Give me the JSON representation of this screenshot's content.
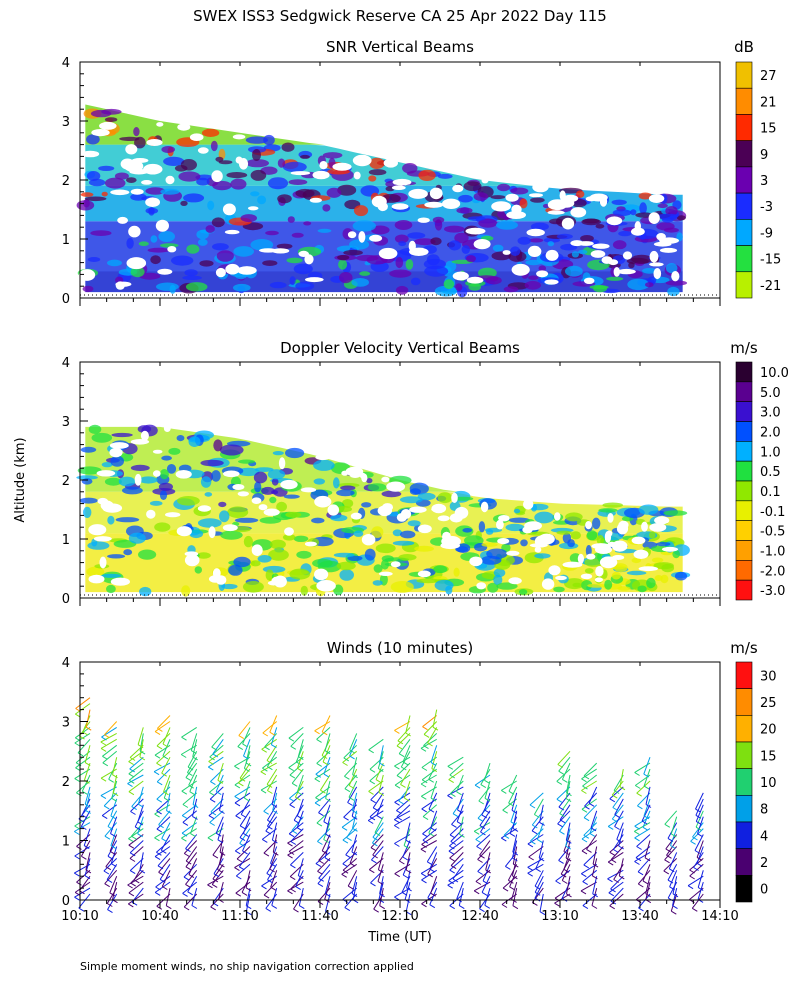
{
  "figure": {
    "title": "SWEX ISS3 Sedgwick Reserve CA  25 Apr 2022 Day 115",
    "ylabel": "Altitude (km)",
    "xlabel": "Time (UT)",
    "footnote": "Simple moment winds, no ship navigation correction applied"
  },
  "chart_data": [
    {
      "type": "heatmap",
      "title": "SNR Vertical Beams",
      "ylabel": "Altitude (km)",
      "xlim": [
        "10:10",
        "14:10"
      ],
      "ylim": [
        0,
        4
      ],
      "yticks": [
        "0",
        "1",
        "2",
        "3",
        "4"
      ],
      "colorbar": {
        "unit": "dB",
        "labels": [
          "27",
          "21",
          "15",
          "9",
          "3",
          "-3",
          "-9",
          "-15",
          "-21"
        ],
        "colors": [
          "#f0c000",
          "#ff8c00",
          "#ff2a00",
          "#4b0055",
          "#6a00b0",
          "#1a2cff",
          "#00a8ff",
          "#24e040",
          "#b8f000"
        ]
      },
      "bands": [
        {
          "alt_from": 0.1,
          "alt_to": 0.45,
          "value": 0,
          "color": "#1e2fd0"
        },
        {
          "alt_from": 0.45,
          "alt_to": 1.3,
          "value": -3,
          "color": "#2a45e6"
        },
        {
          "alt_from": 1.3,
          "alt_to": 1.9,
          "value": -9,
          "color": "#14a8e8"
        },
        {
          "alt_from": 1.9,
          "alt_to": 2.6,
          "value": -12,
          "color": "#2ec8d0"
        },
        {
          "alt_from": 2.6,
          "alt_to": 3.3,
          "value": -18,
          "color": "#7ddc30"
        }
      ],
      "top_km": [
        3.3,
        3.0,
        2.8,
        2.6,
        2.3,
        2.0,
        1.85,
        1.75
      ],
      "top_times": [
        "10:10",
        "10:40",
        "11:10",
        "11:40",
        "12:10",
        "12:40",
        "13:10",
        "13:50"
      ]
    },
    {
      "type": "heatmap",
      "title": "Doppler Velocity Vertical Beams",
      "ylabel": "Altitude (km)",
      "xlim": [
        "10:10",
        "14:10"
      ],
      "ylim": [
        0,
        4
      ],
      "yticks": [
        "0",
        "1",
        "2",
        "3",
        "4"
      ],
      "colorbar": {
        "unit": "m/s",
        "labels": [
          "10.0",
          "5.0",
          "3.0",
          "2.0",
          "1.0",
          "0.5",
          "0.1",
          "-0.1",
          "-0.5",
          "-1.0",
          "-2.0",
          "-3.0"
        ],
        "colors": [
          "#2a0030",
          "#5a0090",
          "#3a10d0",
          "#0050ff",
          "#00b0ff",
          "#20e040",
          "#90e800",
          "#e8f000",
          "#ffd000",
          "#ffa000",
          "#ff6a00",
          "#ff1010"
        ]
      },
      "bands": [
        {
          "alt_from": 0.1,
          "alt_to": 1.1,
          "value": -0.1,
          "color": "#f2ec30"
        },
        {
          "alt_from": 1.1,
          "alt_to": 1.8,
          "value": 0.0,
          "color": "#e6f040"
        },
        {
          "alt_from": 1.8,
          "alt_to": 2.9,
          "value": 0.2,
          "color": "#b8ec40"
        }
      ],
      "top_km": [
        3.0,
        2.9,
        2.7,
        2.4,
        2.0,
        1.7,
        1.6,
        1.55
      ],
      "top_times": [
        "10:10",
        "10:40",
        "11:10",
        "11:40",
        "12:10",
        "12:40",
        "13:10",
        "13:50"
      ]
    },
    {
      "type": "scatter",
      "title": "Winds (10 minutes)",
      "xlabel": "Time (UT)",
      "ylabel": "Altitude (km)",
      "xlim": [
        "10:10",
        "14:10"
      ],
      "ylim": [
        0,
        4
      ],
      "xticks": [
        "10:10",
        "10:40",
        "11:10",
        "11:40",
        "12:10",
        "12:40",
        "13:10",
        "13:40",
        "14:10"
      ],
      "yticks": [
        "0",
        "1",
        "2",
        "3",
        "4"
      ],
      "colorbar": {
        "unit": "m/s",
        "labels": [
          "30",
          "25",
          "20",
          "15",
          "10",
          "8",
          "4",
          "2",
          "0"
        ],
        "colors": [
          "#ff1010",
          "#ff8c00",
          "#ffb000",
          "#7ee010",
          "#20d070",
          "#00a0e8",
          "#1020e0",
          "#4a0070",
          "#000000"
        ]
      },
      "profile_times": [
        "10:10",
        "10:20",
        "10:30",
        "10:40",
        "10:50",
        "11:00",
        "11:10",
        "11:20",
        "11:30",
        "11:40",
        "11:50",
        "12:00",
        "12:10",
        "12:20",
        "12:30",
        "12:40",
        "12:50",
        "13:00",
        "13:10",
        "13:20",
        "13:30",
        "13:40",
        "13:50",
        "14:00"
      ],
      "profile_top_km": [
        3.5,
        3.1,
        3.0,
        3.2,
        3.0,
        2.9,
        3.1,
        3.2,
        3.0,
        3.2,
        2.9,
        2.8,
        3.2,
        3.3,
        2.5,
        2.4,
        2.2,
        1.9,
        2.6,
        2.4,
        2.3,
        2.5,
        1.6,
        1.9
      ]
    }
  ]
}
